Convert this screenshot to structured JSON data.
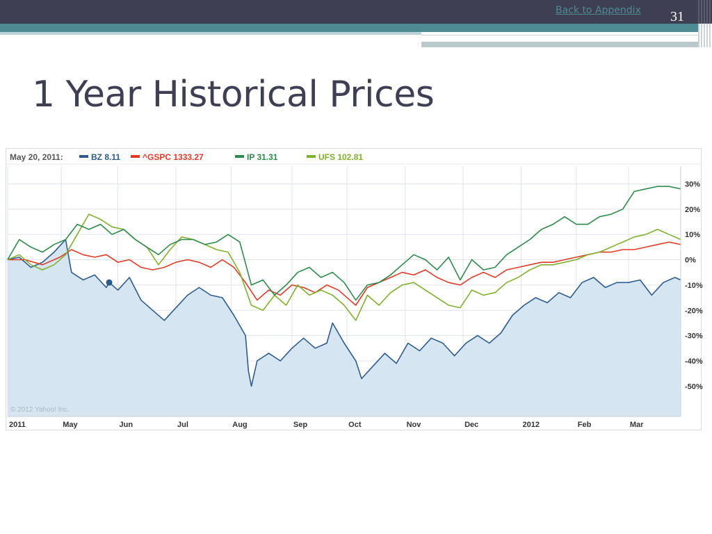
{
  "slide": {
    "back_link": "Back to Appendix",
    "slide_number": "31",
    "title": "1 Year Historical Prices"
  },
  "colors": {
    "header_bar": "#3f3f53",
    "accent_teal": "#4d8a93",
    "BZ": "#2c5b8c",
    "GSPC": "#e03a26",
    "IP": "#2f8a4a",
    "UFS": "#7fb02e",
    "area_fill": "#d5e5f2"
  },
  "chart_data": {
    "type": "line",
    "legend": {
      "date": "May 20, 2011:",
      "entries": [
        {
          "key": "BZ",
          "label": "BZ 8.11"
        },
        {
          "key": "GSPC",
          "label": "^GSPC 1333.27"
        },
        {
          "key": "IP",
          "label": "IP 31.31"
        },
        {
          "key": "UFS",
          "label": "UFS 102.81"
        }
      ]
    },
    "copyright": "© 2012 Yahoo! Inc.",
    "x_ticks": [
      {
        "label": "2011",
        "t": 0
      },
      {
        "label": "May",
        "t": 0.925
      },
      {
        "label": "Jun",
        "t": 1.9
      },
      {
        "label": "Jul",
        "t": 2.9
      },
      {
        "label": "Aug",
        "t": 3.85
      },
      {
        "label": "Sep",
        "t": 4.9
      },
      {
        "label": "Oct",
        "t": 5.85
      },
      {
        "label": "Nov",
        "t": 6.85
      },
      {
        "label": "Dec",
        "t": 7.85
      },
      {
        "label": "2012",
        "t": 8.85
      },
      {
        "label": "Feb",
        "t": 9.8
      },
      {
        "label": "Mar",
        "t": 10.7
      }
    ],
    "xlim": [
      0,
      11.6
    ],
    "y_ticks": [
      {
        "label": "30%",
        "v": 30
      },
      {
        "label": "20%",
        "v": 20
      },
      {
        "label": "10%",
        "v": 10
      },
      {
        "label": "0%",
        "v": 0
      },
      {
        "label": "-10%",
        "v": -10
      },
      {
        "label": "-20%",
        "v": -20
      },
      {
        "label": "-30%",
        "v": -30
      },
      {
        "label": "-40%",
        "v": -40
      },
      {
        "label": "-50%",
        "v": -50
      }
    ],
    "ylim": [
      -62,
      37
    ],
    "highlight": {
      "series": "BZ",
      "t": 1.75,
      "v": -9
    },
    "series": [
      {
        "key": "BZ",
        "fill_area": true,
        "points": [
          [
            0,
            0
          ],
          [
            0.2,
            1
          ],
          [
            0.4,
            -3
          ],
          [
            0.6,
            -1
          ],
          [
            0.8,
            3
          ],
          [
            1.0,
            8
          ],
          [
            1.1,
            -5
          ],
          [
            1.3,
            -8
          ],
          [
            1.5,
            -6
          ],
          [
            1.7,
            -11
          ],
          [
            1.75,
            -9
          ],
          [
            1.9,
            -12
          ],
          [
            2.1,
            -7
          ],
          [
            2.3,
            -16
          ],
          [
            2.5,
            -20
          ],
          [
            2.7,
            -24
          ],
          [
            2.9,
            -19
          ],
          [
            3.1,
            -14
          ],
          [
            3.3,
            -11
          ],
          [
            3.5,
            -14
          ],
          [
            3.7,
            -15
          ],
          [
            3.9,
            -22
          ],
          [
            4.1,
            -30
          ],
          [
            4.15,
            -44
          ],
          [
            4.2,
            -50
          ],
          [
            4.3,
            -40
          ],
          [
            4.5,
            -37
          ],
          [
            4.7,
            -40
          ],
          [
            4.9,
            -35
          ],
          [
            5.1,
            -31
          ],
          [
            5.3,
            -35
          ],
          [
            5.5,
            -33
          ],
          [
            5.6,
            -25
          ],
          [
            5.8,
            -33
          ],
          [
            6.0,
            -40
          ],
          [
            6.1,
            -47
          ],
          [
            6.3,
            -42
          ],
          [
            6.5,
            -37
          ],
          [
            6.7,
            -41
          ],
          [
            6.9,
            -33
          ],
          [
            7.1,
            -36
          ],
          [
            7.3,
            -31
          ],
          [
            7.5,
            -33
          ],
          [
            7.7,
            -38
          ],
          [
            7.9,
            -33
          ],
          [
            8.1,
            -30
          ],
          [
            8.3,
            -33
          ],
          [
            8.5,
            -29
          ],
          [
            8.7,
            -22
          ],
          [
            8.9,
            -18
          ],
          [
            9.1,
            -15
          ],
          [
            9.3,
            -17
          ],
          [
            9.5,
            -13
          ],
          [
            9.7,
            -15
          ],
          [
            9.9,
            -9
          ],
          [
            10.1,
            -7
          ],
          [
            10.3,
            -11
          ],
          [
            10.5,
            -9
          ],
          [
            10.7,
            -9
          ],
          [
            10.9,
            -8
          ],
          [
            11.1,
            -14
          ],
          [
            11.3,
            -9
          ],
          [
            11.5,
            -7
          ],
          [
            11.6,
            -8
          ]
        ]
      },
      {
        "key": "GSPC",
        "fill_area": false,
        "points": [
          [
            0,
            0
          ],
          [
            0.3,
            0
          ],
          [
            0.6,
            -2
          ],
          [
            0.9,
            1
          ],
          [
            1.1,
            4
          ],
          [
            1.3,
            2
          ],
          [
            1.5,
            1
          ],
          [
            1.7,
            2
          ],
          [
            1.9,
            -1
          ],
          [
            2.1,
            0
          ],
          [
            2.3,
            -3
          ],
          [
            2.5,
            -4
          ],
          [
            2.7,
            -3
          ],
          [
            2.9,
            -1
          ],
          [
            3.1,
            0
          ],
          [
            3.3,
            -1
          ],
          [
            3.5,
            -3
          ],
          [
            3.7,
            0
          ],
          [
            3.9,
            -3
          ],
          [
            4.1,
            -9
          ],
          [
            4.3,
            -16
          ],
          [
            4.5,
            -12
          ],
          [
            4.7,
            -14
          ],
          [
            4.9,
            -10
          ],
          [
            5.1,
            -11
          ],
          [
            5.3,
            -13
          ],
          [
            5.5,
            -10
          ],
          [
            5.7,
            -12
          ],
          [
            5.9,
            -16
          ],
          [
            6.0,
            -18
          ],
          [
            6.2,
            -11
          ],
          [
            6.4,
            -9
          ],
          [
            6.6,
            -7
          ],
          [
            6.8,
            -5
          ],
          [
            7.0,
            -6
          ],
          [
            7.2,
            -4
          ],
          [
            7.4,
            -7
          ],
          [
            7.6,
            -9
          ],
          [
            7.8,
            -10
          ],
          [
            8.0,
            -7
          ],
          [
            8.2,
            -5
          ],
          [
            8.4,
            -7
          ],
          [
            8.6,
            -4
          ],
          [
            8.8,
            -3
          ],
          [
            9.0,
            -2
          ],
          [
            9.2,
            -1
          ],
          [
            9.4,
            -1
          ],
          [
            9.6,
            0
          ],
          [
            9.8,
            1
          ],
          [
            10.0,
            2
          ],
          [
            10.2,
            3
          ],
          [
            10.4,
            3
          ],
          [
            10.6,
            4
          ],
          [
            10.8,
            4
          ],
          [
            11.0,
            5
          ],
          [
            11.2,
            6
          ],
          [
            11.4,
            7
          ],
          [
            11.6,
            6
          ]
        ]
      },
      {
        "key": "IP",
        "fill_area": false,
        "points": [
          [
            0,
            0
          ],
          [
            0.2,
            8
          ],
          [
            0.4,
            5
          ],
          [
            0.6,
            3
          ],
          [
            0.8,
            6
          ],
          [
            1.0,
            8
          ],
          [
            1.2,
            14
          ],
          [
            1.4,
            12
          ],
          [
            1.6,
            14
          ],
          [
            1.8,
            10
          ],
          [
            2.0,
            12
          ],
          [
            2.2,
            8
          ],
          [
            2.4,
            5
          ],
          [
            2.6,
            2
          ],
          [
            2.8,
            6
          ],
          [
            3.0,
            8
          ],
          [
            3.2,
            8
          ],
          [
            3.4,
            6
          ],
          [
            3.6,
            7
          ],
          [
            3.8,
            10
          ],
          [
            4.0,
            7
          ],
          [
            4.2,
            -10
          ],
          [
            4.4,
            -8
          ],
          [
            4.6,
            -14
          ],
          [
            4.8,
            -10
          ],
          [
            5.0,
            -5
          ],
          [
            5.2,
            -3
          ],
          [
            5.4,
            -7
          ],
          [
            5.6,
            -5
          ],
          [
            5.8,
            -9
          ],
          [
            6.0,
            -16
          ],
          [
            6.2,
            -10
          ],
          [
            6.4,
            -9
          ],
          [
            6.6,
            -6
          ],
          [
            6.8,
            -2
          ],
          [
            7.0,
            2
          ],
          [
            7.2,
            0
          ],
          [
            7.4,
            -4
          ],
          [
            7.6,
            1
          ],
          [
            7.8,
            -8
          ],
          [
            8.0,
            0
          ],
          [
            8.2,
            -4
          ],
          [
            8.4,
            -3
          ],
          [
            8.6,
            2
          ],
          [
            8.8,
            5
          ],
          [
            9.0,
            8
          ],
          [
            9.2,
            12
          ],
          [
            9.4,
            14
          ],
          [
            9.6,
            17
          ],
          [
            9.8,
            14
          ],
          [
            10.0,
            14
          ],
          [
            10.2,
            17
          ],
          [
            10.4,
            18
          ],
          [
            10.6,
            20
          ],
          [
            10.8,
            27
          ],
          [
            11.0,
            28
          ],
          [
            11.2,
            29
          ],
          [
            11.4,
            29
          ],
          [
            11.6,
            28
          ]
        ]
      },
      {
        "key": "UFS",
        "fill_area": false,
        "points": [
          [
            0,
            0
          ],
          [
            0.2,
            2
          ],
          [
            0.4,
            -2
          ],
          [
            0.6,
            -4
          ],
          [
            0.8,
            -2
          ],
          [
            1.0,
            2
          ],
          [
            1.2,
            10
          ],
          [
            1.4,
            18
          ],
          [
            1.6,
            16
          ],
          [
            1.8,
            13
          ],
          [
            2.0,
            12
          ],
          [
            2.2,
            8
          ],
          [
            2.4,
            5
          ],
          [
            2.6,
            -2
          ],
          [
            2.8,
            4
          ],
          [
            3.0,
            9
          ],
          [
            3.2,
            8
          ],
          [
            3.4,
            6
          ],
          [
            3.6,
            4
          ],
          [
            3.8,
            3
          ],
          [
            4.0,
            -5
          ],
          [
            4.2,
            -18
          ],
          [
            4.4,
            -20
          ],
          [
            4.6,
            -14
          ],
          [
            4.8,
            -18
          ],
          [
            5.0,
            -10
          ],
          [
            5.2,
            -14
          ],
          [
            5.4,
            -12
          ],
          [
            5.6,
            -14
          ],
          [
            5.8,
            -18
          ],
          [
            6.0,
            -24
          ],
          [
            6.2,
            -14
          ],
          [
            6.4,
            -18
          ],
          [
            6.6,
            -13
          ],
          [
            6.8,
            -10
          ],
          [
            7.0,
            -9
          ],
          [
            7.2,
            -12
          ],
          [
            7.4,
            -15
          ],
          [
            7.6,
            -18
          ],
          [
            7.8,
            -19
          ],
          [
            8.0,
            -12
          ],
          [
            8.2,
            -14
          ],
          [
            8.4,
            -13
          ],
          [
            8.6,
            -9
          ],
          [
            8.8,
            -7
          ],
          [
            9.0,
            -4
          ],
          [
            9.2,
            -2
          ],
          [
            9.4,
            -2
          ],
          [
            9.6,
            -1
          ],
          [
            9.8,
            0
          ],
          [
            10.0,
            2
          ],
          [
            10.2,
            3
          ],
          [
            10.4,
            5
          ],
          [
            10.6,
            7
          ],
          [
            10.8,
            9
          ],
          [
            11.0,
            10
          ],
          [
            11.2,
            12
          ],
          [
            11.4,
            10
          ],
          [
            11.6,
            8
          ]
        ]
      }
    ]
  }
}
